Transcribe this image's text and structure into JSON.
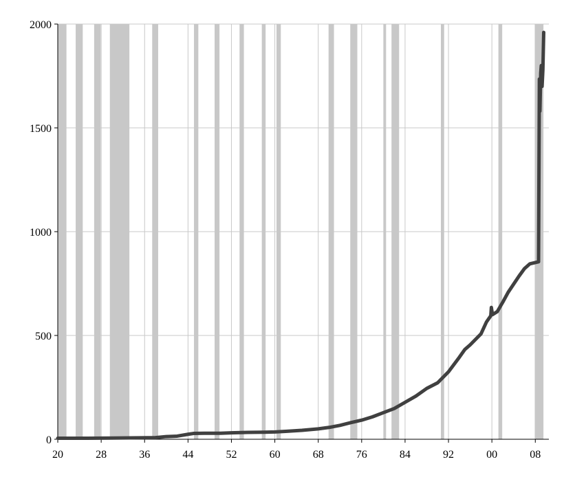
{
  "chart_data": {
    "type": "line",
    "title": "",
    "xlabel": "",
    "ylabel": "",
    "xlim": [
      1920,
      2010.5
    ],
    "ylim": [
      0,
      2000
    ],
    "x_ticks": [
      {
        "value": 1920,
        "label": "20"
      },
      {
        "value": 1928,
        "label": "28"
      },
      {
        "value": 1936,
        "label": "36"
      },
      {
        "value": 1944,
        "label": "44"
      },
      {
        "value": 1952,
        "label": "52"
      },
      {
        "value": 1960,
        "label": "60"
      },
      {
        "value": 1968,
        "label": "68"
      },
      {
        "value": 1976,
        "label": "76"
      },
      {
        "value": 1984,
        "label": "84"
      },
      {
        "value": 1992,
        "label": "92"
      },
      {
        "value": 2000,
        "label": "00"
      },
      {
        "value": 2008,
        "label": "08"
      }
    ],
    "y_ticks": [
      {
        "value": 0,
        "label": "0"
      },
      {
        "value": 500,
        "label": "500"
      },
      {
        "value": 1000,
        "label": "1000"
      },
      {
        "value": 1500,
        "label": "1500"
      },
      {
        "value": 2000,
        "label": "2000"
      }
    ],
    "grid": true,
    "shaded_periods": [
      [
        1920.0,
        1921.6
      ],
      [
        1923.3,
        1924.6
      ],
      [
        1926.7,
        1927.9
      ],
      [
        1929.6,
        1933.2
      ],
      [
        1937.4,
        1938.5
      ],
      [
        1945.1,
        1945.9
      ],
      [
        1948.9,
        1949.8
      ],
      [
        1953.5,
        1954.3
      ],
      [
        1957.6,
        1958.3
      ],
      [
        1960.3,
        1961.1
      ],
      [
        1969.9,
        1970.9
      ],
      [
        1973.9,
        1975.2
      ],
      [
        1980.0,
        1980.5
      ],
      [
        1981.5,
        1982.9
      ],
      [
        1990.6,
        1991.2
      ],
      [
        2001.2,
        2001.9
      ],
      [
        2007.9,
        2009.5
      ]
    ],
    "colors": {
      "line": "#404040",
      "shade": "#c8c8c8",
      "grid": "#c8c8c8",
      "axis": "#000000"
    },
    "series": [
      {
        "values": [
          [
            1920,
            5
          ],
          [
            1925,
            5
          ],
          [
            1930,
            6
          ],
          [
            1935,
            7
          ],
          [
            1938,
            8
          ],
          [
            1940,
            13
          ],
          [
            1942,
            15
          ],
          [
            1944,
            24
          ],
          [
            1945,
            28
          ],
          [
            1947,
            29
          ],
          [
            1950,
            29
          ],
          [
            1952,
            31
          ],
          [
            1955,
            33
          ],
          [
            1958,
            34
          ],
          [
            1960,
            35
          ],
          [
            1962,
            38
          ],
          [
            1965,
            43
          ],
          [
            1968,
            50
          ],
          [
            1970,
            57
          ],
          [
            1972,
            67
          ],
          [
            1974,
            80
          ],
          [
            1976,
            92
          ],
          [
            1978,
            108
          ],
          [
            1980,
            128
          ],
          [
            1982,
            148
          ],
          [
            1984,
            178
          ],
          [
            1986,
            208
          ],
          [
            1988,
            245
          ],
          [
            1990,
            272
          ],
          [
            1992,
            325
          ],
          [
            1994,
            395
          ],
          [
            1995,
            432
          ],
          [
            1996,
            455
          ],
          [
            1998,
            508
          ],
          [
            1999,
            565
          ],
          [
            1999.8,
            595
          ],
          [
            1999.9,
            635
          ],
          [
            2000.1,
            600
          ],
          [
            2001,
            615
          ],
          [
            2002,
            660
          ],
          [
            2003,
            708
          ],
          [
            2005,
            786
          ],
          [
            2006,
            822
          ],
          [
            2007,
            845
          ],
          [
            2008.6,
            855
          ],
          [
            2008.75,
            1735
          ],
          [
            2008.85,
            1580
          ],
          [
            2009.0,
            1765
          ],
          [
            2009.1,
            1800
          ],
          [
            2009.25,
            1700
          ],
          [
            2009.4,
            1780
          ],
          [
            2009.55,
            1960
          ]
        ]
      }
    ]
  }
}
